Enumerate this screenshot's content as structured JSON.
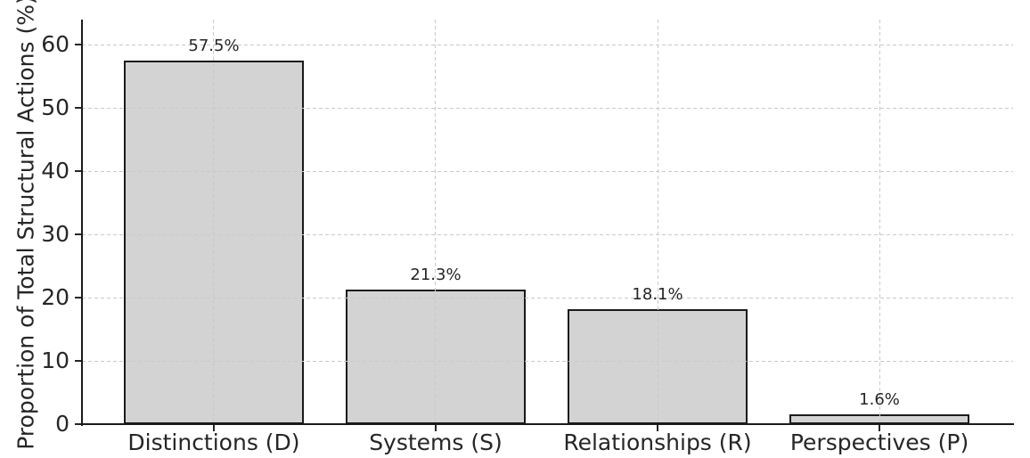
{
  "chart_data": {
    "type": "bar",
    "title": "",
    "categories": [
      "Distinctions (D)",
      "Systems (S)",
      "Relationships (R)",
      "Perspectives (P)"
    ],
    "values": [
      57.5,
      21.3,
      18.1,
      1.6
    ],
    "value_labels": [
      "57.5%",
      "21.3%",
      "18.1%",
      "1.6%"
    ],
    "xlabel": "",
    "ylabel": "Proportion of Total Structural Actions (%)",
    "ylim": [
      0,
      64
    ],
    "yticks": [
      0,
      10,
      20,
      30,
      40,
      50,
      60
    ],
    "ytick_labels": [
      "0",
      "10",
      "20",
      "30",
      "40",
      "50",
      "60"
    ],
    "grid": "dashed horizontal at y-ticks and dashed vertical at bar centers, drawn above bars",
    "legend": "none",
    "colors": {
      "bar_fill": "#d3d3d3",
      "bar_edge": "#1a1a1a",
      "grid": "#c9c9c9",
      "spine": "#1a1a1a",
      "tick": "#262626",
      "text": "#262626"
    }
  }
}
